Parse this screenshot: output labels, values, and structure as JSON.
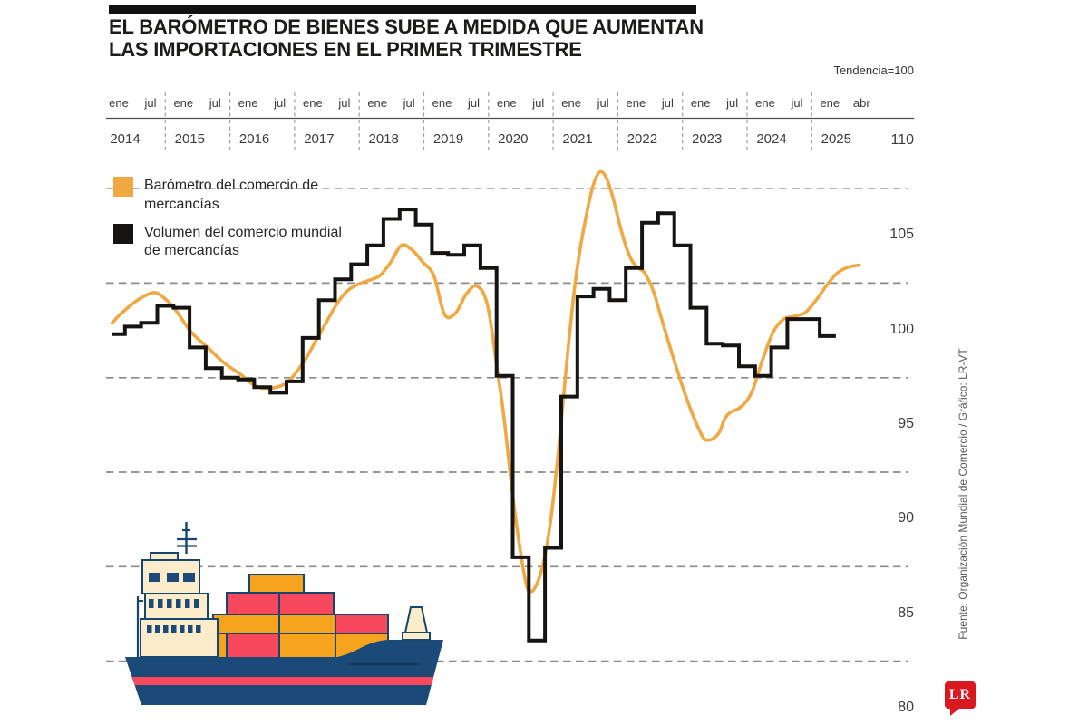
{
  "header": {
    "title_lines": [
      "EL BARÓMETRO DE BIENES SUBE A MEDIDA QUE AUMENTAN",
      "LAS IMPORTACIONES EN EL PRIMER TRIMESTRE"
    ],
    "trend_note": "Tendencia=100"
  },
  "legend": {
    "items": [
      {
        "label": "Barómetro del comercio de mercancías",
        "color": "#F0A843"
      },
      {
        "label": "Volumen del comercio mundial de mercancías",
        "color": "#161412"
      }
    ]
  },
  "x_axis": {
    "years": [
      {
        "label": "2014",
        "months": [
          "ene",
          "jul"
        ]
      },
      {
        "label": "2015",
        "months": [
          "ene",
          "jul"
        ]
      },
      {
        "label": "2016",
        "months": [
          "ene",
          "jul"
        ]
      },
      {
        "label": "2017",
        "months": [
          "ene",
          "jul"
        ]
      },
      {
        "label": "2018",
        "months": [
          "ene",
          "jul"
        ]
      },
      {
        "label": "2019",
        "months": [
          "ene",
          "jul"
        ]
      },
      {
        "label": "2020",
        "months": [
          "ene",
          "jul"
        ]
      },
      {
        "label": "2021",
        "months": [
          "ene",
          "jul"
        ]
      },
      {
        "label": "2022",
        "months": [
          "ene",
          "jul"
        ]
      },
      {
        "label": "2023",
        "months": [
          "ene",
          "jul"
        ]
      },
      {
        "label": "2024",
        "months": [
          "ene",
          "jul"
        ]
      },
      {
        "label": "2025",
        "months": [
          "ene",
          "abr"
        ]
      }
    ]
  },
  "y_axis": {
    "tick_labels": [
      110,
      105,
      100,
      95,
      90,
      85,
      80
    ],
    "grid_values": [
      107.5,
      102.5,
      97.5,
      92.5,
      87.5,
      82.5
    ]
  },
  "footer": {
    "source_credit": "Fuente: Organización Mundial de Comercio  / Gráfico: LR-VT",
    "logo_text": "LR",
    "logo_color": "#D8191F"
  },
  "chart_data": {
    "type": "line",
    "title": "El barómetro de bienes sube a medida que aumentan las importaciones en el primer trimestre",
    "note": "Tendencia=100",
    "ylim": [
      80,
      110
    ],
    "x_range": [
      "ene 2014",
      "abr 2025"
    ],
    "grid": "dashed-horizontal",
    "legend_position": "top-left",
    "series": [
      {
        "name": "Barómetro del comercio de mercancías",
        "color": "#F0A843",
        "style": "smooth",
        "x_months_since_2014_01": [
          0.3,
          2,
          5,
          8,
          10,
          12,
          15,
          18,
          21,
          24,
          27,
          30,
          33,
          36,
          38,
          40,
          42,
          44,
          46,
          48,
          50,
          52,
          54,
          56,
          58,
          60,
          62,
          64,
          66,
          68,
          70,
          72,
          73,
          75,
          77,
          78,
          79,
          80,
          81,
          82,
          83,
          84,
          85,
          86,
          87,
          88,
          89,
          90,
          91,
          92,
          93,
          94,
          95,
          96,
          97,
          98,
          99,
          100,
          101,
          102,
          104,
          106,
          108,
          110,
          111,
          112,
          113,
          114,
          115,
          117,
          119,
          121,
          123,
          125,
          127,
          129,
          131,
          133,
          135,
          137,
          139
        ],
        "values": [
          100.4,
          100.9,
          101.6,
          102.0,
          101.7,
          101.1,
          99.9,
          99.1,
          98.3,
          97.7,
          97.05,
          96.95,
          97.3,
          98.4,
          99.4,
          100.4,
          101.4,
          102.1,
          102.45,
          102.65,
          102.9,
          103.6,
          104.5,
          104.25,
          103.6,
          102.9,
          100.85,
          100.9,
          101.9,
          102.35,
          101.3,
          97.5,
          95.5,
          90.5,
          86.8,
          86.2,
          86.5,
          87.3,
          88.6,
          90.6,
          93.2,
          96.2,
          99.2,
          101.9,
          104.0,
          105.6,
          107.0,
          108.0,
          108.4,
          108.1,
          107.3,
          106.2,
          105.1,
          104.2,
          103.6,
          103.3,
          103.1,
          102.6,
          101.9,
          100.9,
          99.0,
          97.2,
          95.6,
          94.35,
          94.2,
          94.3,
          94.6,
          95.3,
          95.65,
          95.95,
          96.7,
          98.4,
          99.9,
          100.6,
          100.75,
          100.95,
          101.6,
          102.4,
          103.05,
          103.35,
          103.45
        ]
      },
      {
        "name": "Volumen del comercio mundial de mercancías",
        "color": "#161412",
        "style": "step",
        "start": "2014-Q1",
        "frequency": "quarterly",
        "values": [
          99.8,
          100.2,
          100.4,
          101.3,
          101.2,
          99.1,
          98.0,
          97.5,
          97.4,
          97.0,
          96.7,
          97.3,
          99.6,
          101.6,
          102.7,
          103.5,
          104.5,
          105.9,
          106.4,
          105.6,
          104.1,
          104.0,
          104.5,
          103.3,
          97.6,
          88.0,
          83.6,
          88.5,
          96.5,
          101.8,
          102.2,
          101.6,
          103.3,
          105.7,
          106.2,
          104.5,
          101.2,
          99.3,
          99.2,
          98.1,
          97.6,
          99.1,
          100.6,
          100.6,
          99.7
        ]
      }
    ]
  }
}
